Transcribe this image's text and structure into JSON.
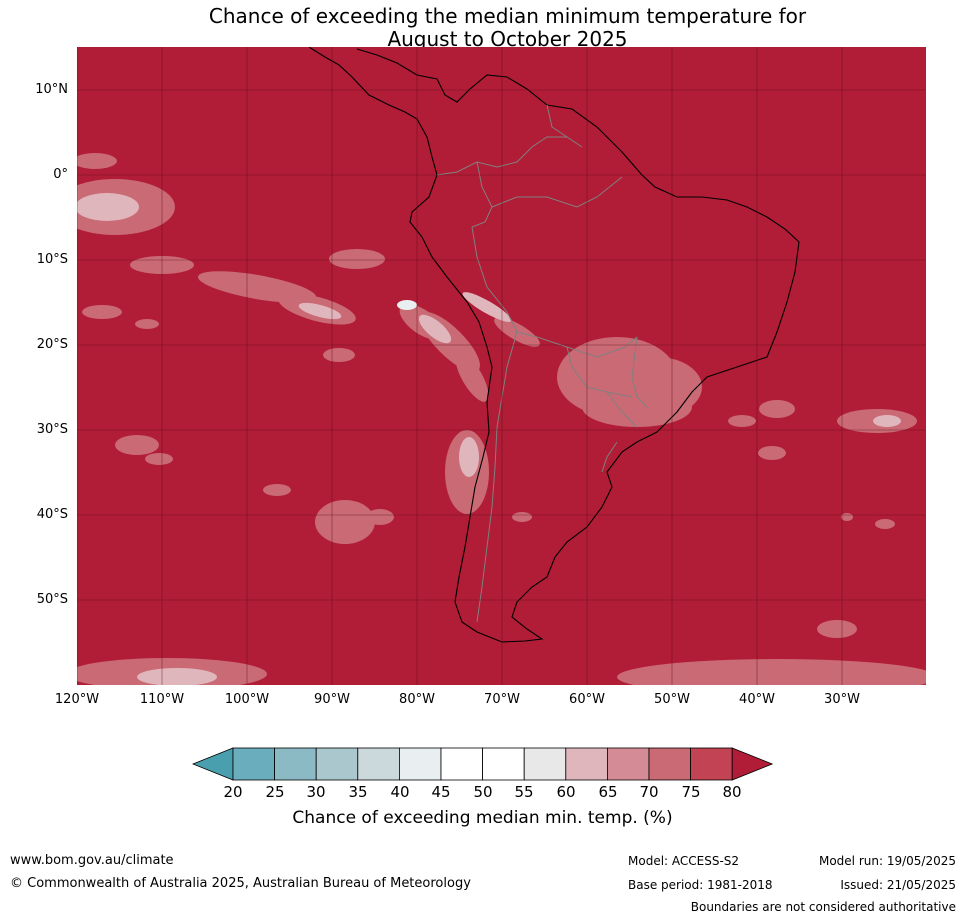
{
  "title": {
    "line1": "Chance of exceeding the median minimum temperature for",
    "line2": "August to October 2025"
  },
  "map": {
    "lat_ticks": [
      "10°N",
      "0°",
      "10°S",
      "20°S",
      "30°S",
      "40°S",
      "50°S"
    ],
    "lon_ticks": [
      "120°W",
      "110°W",
      "100°W",
      "90°W",
      "80°W",
      "70°W",
      "60°W",
      "50°W",
      "40°W",
      "30°W"
    ],
    "background_color": "#b11c36"
  },
  "colorbar": {
    "ticks": [
      "20",
      "25",
      "30",
      "35",
      "40",
      "45",
      "50",
      "55",
      "60",
      "65",
      "70",
      "75",
      "80"
    ],
    "colors": [
      "#4a9fae",
      "#6aaebd",
      "#8bb9c4",
      "#a9c7cc",
      "#cbd9dd",
      "#e9eff1",
      "#ffffff",
      "#ffffff",
      "#e8e8e8",
      "#e0b6bd",
      "#d58b95",
      "#c96a75",
      "#c14354",
      "#b11c36"
    ],
    "label": "Chance of exceeding median min. temp. (%)"
  },
  "footer": {
    "website": "www.bom.gov.au/climate",
    "copyright": "© Commonwealth of Australia 2025, Australian Bureau of Meteorology",
    "model": "Model: ACCESS-S2",
    "base_period": "Base period: 1981-2018",
    "model_run": "Model run: 19/05/2025",
    "issued": "Issued: 21/05/2025",
    "disclaimer": "Boundaries are not considered authoritative"
  }
}
